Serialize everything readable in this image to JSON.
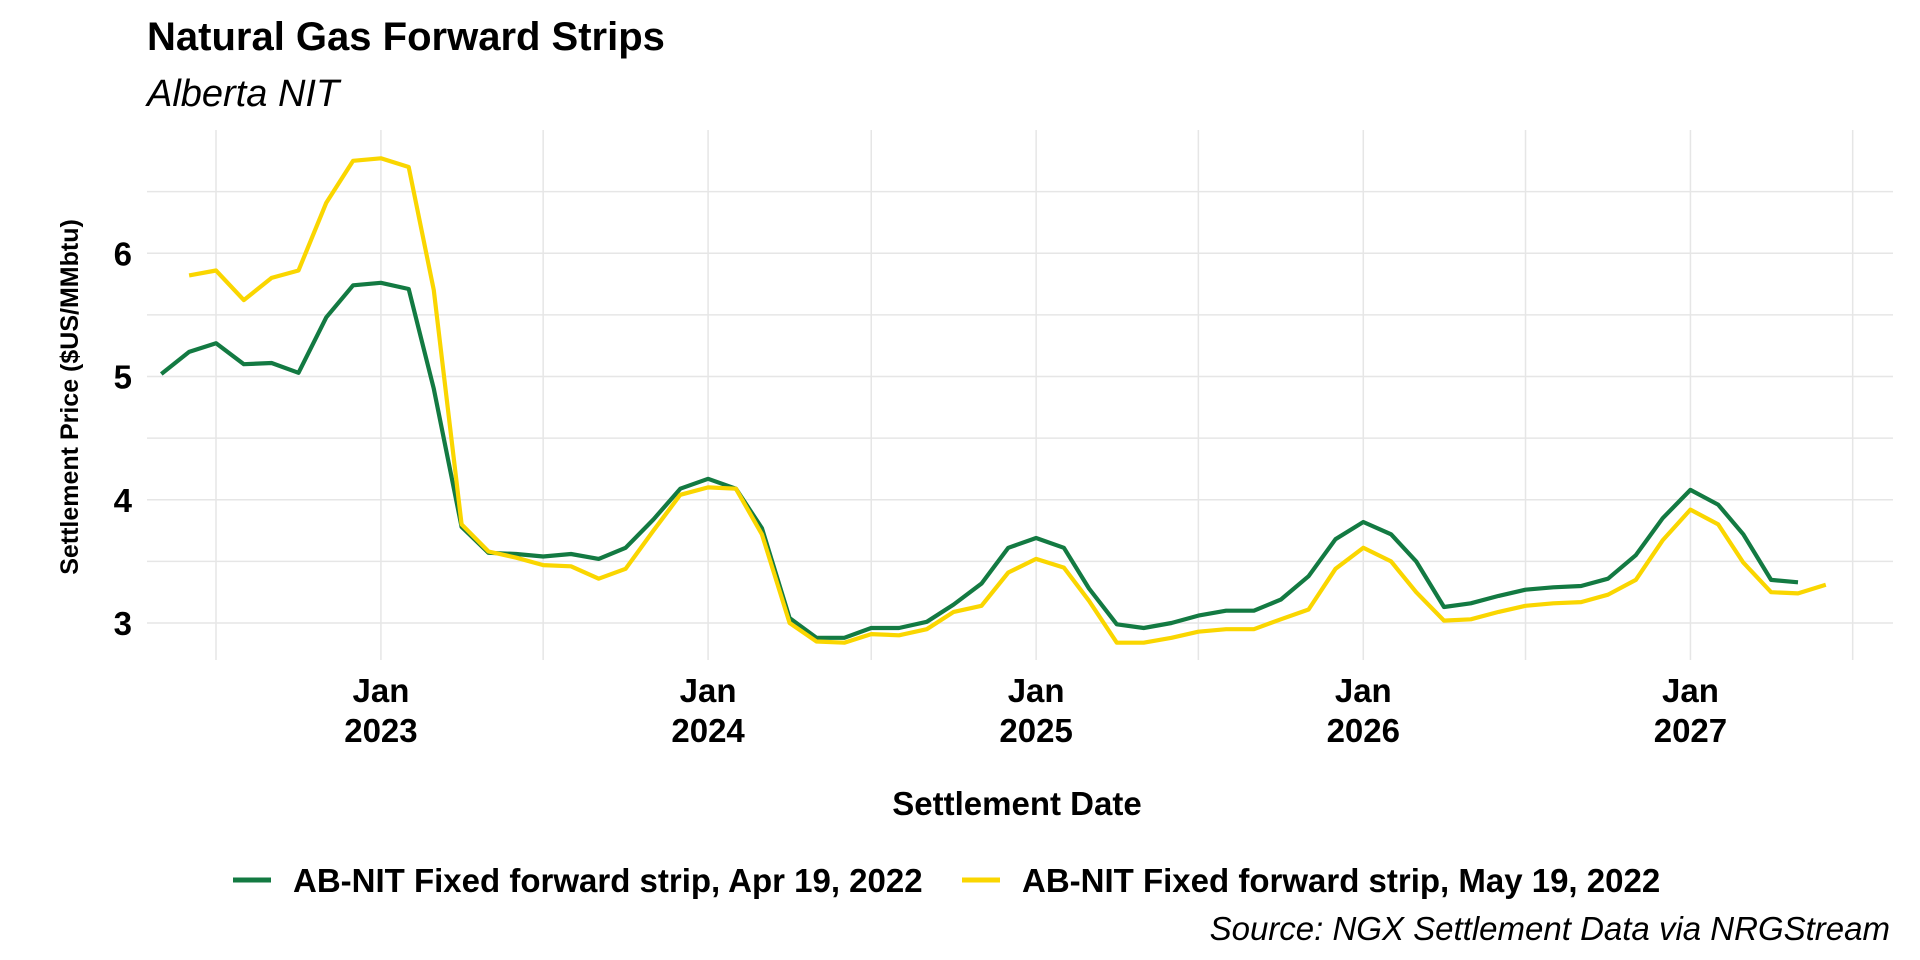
{
  "chart_data": {
    "type": "line",
    "title": "Natural Gas Forward Strips",
    "subtitle": "Alberta NIT",
    "xlabel": "Settlement Date",
    "ylabel": "Settlement Price ($US/MMbtu)",
    "caption": "Source: NGX Settlement Data via NRGStream",
    "ylim": [
      2.7,
      7.0
    ],
    "yticks": [
      3,
      4,
      5,
      6
    ],
    "xlim": [
      "2022-04-15",
      "2027-08-15"
    ],
    "xticks": [
      {
        "date": "2023-01-01",
        "month": "Jan",
        "year": "2023"
      },
      {
        "date": "2024-01-01",
        "month": "Jan",
        "year": "2024"
      },
      {
        "date": "2025-01-01",
        "month": "Jan",
        "year": "2025"
      },
      {
        "date": "2026-01-01",
        "month": "Jan",
        "year": "2026"
      },
      {
        "date": "2027-01-01",
        "month": "Jan",
        "year": "2027"
      }
    ],
    "grid": true,
    "legend_position": "bottom",
    "series": [
      {
        "name": "AB-NIT Fixed forward strip, Apr 19, 2022",
        "color": "#137a42",
        "start": "2022-05",
        "values": [
          5.02,
          5.2,
          5.27,
          5.1,
          5.11,
          5.03,
          5.48,
          5.74,
          5.76,
          5.71,
          4.9,
          3.78,
          3.57,
          3.56,
          3.54,
          3.56,
          3.52,
          3.61,
          3.84,
          4.09,
          4.17,
          4.09,
          3.77,
          3.04,
          2.88,
          2.88,
          2.96,
          2.96,
          3.01,
          3.15,
          3.32,
          3.61,
          3.69,
          3.61,
          3.28,
          2.99,
          2.96,
          3.0,
          3.06,
          3.1,
          3.1,
          3.19,
          3.38,
          3.68,
          3.82,
          3.72,
          3.5,
          3.13,
          3.16,
          3.22,
          3.27,
          3.29,
          3.3,
          3.36,
          3.55,
          3.85,
          4.08,
          3.96,
          3.72,
          3.35,
          3.33
        ]
      },
      {
        "name": "AB-NIT Fixed forward strip, May 19, 2022",
        "color": "#fad600",
        "start": "2022-06",
        "values": [
          5.82,
          5.86,
          5.62,
          5.8,
          5.86,
          6.41,
          6.75,
          6.77,
          6.7,
          5.7,
          3.8,
          3.58,
          3.53,
          3.47,
          3.46,
          3.36,
          3.44,
          3.75,
          4.04,
          4.1,
          4.09,
          3.72,
          3.0,
          2.85,
          2.84,
          2.91,
          2.9,
          2.95,
          3.09,
          3.14,
          3.41,
          3.52,
          3.45,
          3.18,
          2.84,
          2.84,
          2.88,
          2.93,
          2.95,
          2.95,
          3.03,
          3.11,
          3.44,
          3.61,
          3.5,
          3.25,
          3.02,
          3.03,
          3.09,
          3.14,
          3.16,
          3.17,
          3.23,
          3.35,
          3.67,
          3.92,
          3.8,
          3.49,
          3.25,
          3.24,
          3.31
        ]
      }
    ]
  }
}
